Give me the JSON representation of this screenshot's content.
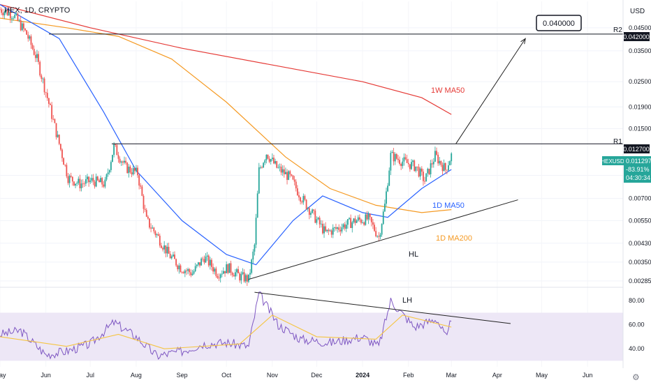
{
  "symbol_title": "HEX, 1D, CRYPTO",
  "currency": "USD",
  "price_badge": {
    "symbol": "HEXUSD",
    "price": "0.011297",
    "change": "-83.91%",
    "timer": "04:30:34",
    "color": "#26a69a"
  },
  "colors": {
    "up_candle": "#26a69a",
    "down_candle": "#ef5350",
    "ma50_1d": "#2962ff",
    "ma200_1d": "#f59a23",
    "ma50_1w": "#e53935",
    "rsi_line": "#7e57c2",
    "rsi_ma": "#f5c542",
    "rsi_band": "#ede7f6",
    "trendline": "#222222"
  },
  "annotations": {
    "target": "0.040000",
    "r2_label": "R2",
    "r2_value": "0.042000",
    "r1_label": "R1",
    "r1_value": "0.012700",
    "ma50_1w_label": "1W MA50",
    "ma50_1d_label": "1D MA50",
    "ma200_1d_label": "1D MA200",
    "hl_label": "HL",
    "lh_label": "LH"
  },
  "price_axis_ticks": [
    "0.045000",
    "0.035000",
    "0.025000",
    "0.019000",
    "0.015000",
    "0.009000",
    "0.007000",
    "0.005500",
    "0.004300",
    "0.003500",
    "0.002850"
  ],
  "rsi_axis_ticks": [
    "80.00",
    "60.00",
    "40.00"
  ],
  "time_axis_labels": [
    "May",
    "Jun",
    "Jul",
    "Aug",
    "Sep",
    "Oct",
    "Nov",
    "Dec",
    "2024",
    "Feb",
    "Mar",
    "Apr",
    "May",
    "Jun"
  ],
  "chart_data": {
    "type": "candlestick",
    "price_scale": "log",
    "y_range": [
      0.0027,
      0.06
    ],
    "rsi_range": [
      25,
      90
    ],
    "rsi_band": [
      30,
      70
    ],
    "x_range": [
      "2023-05-01",
      "2024-06-25"
    ],
    "candles": [
      {
        "date": "2023-05-01",
        "close": 0.055
      },
      {
        "date": "2023-05-10",
        "close": 0.052
      },
      {
        "date": "2023-05-19",
        "close": 0.042
      },
      {
        "date": "2023-05-26",
        "close": 0.032
      },
      {
        "date": "2023-06-02",
        "close": 0.021
      },
      {
        "date": "2023-06-09",
        "close": 0.0135
      },
      {
        "date": "2023-06-16",
        "close": 0.0088
      },
      {
        "date": "2023-06-24",
        "close": 0.0082
      },
      {
        "date": "2023-07-02",
        "close": 0.0085
      },
      {
        "date": "2023-07-11",
        "close": 0.0082
      },
      {
        "date": "2023-07-17",
        "close": 0.0123
      },
      {
        "date": "2023-07-25",
        "close": 0.0098
      },
      {
        "date": "2023-08-02",
        "close": 0.0092
      },
      {
        "date": "2023-08-08",
        "close": 0.0055
      },
      {
        "date": "2023-08-15",
        "close": 0.0047
      },
      {
        "date": "2023-08-23",
        "close": 0.0038
      },
      {
        "date": "2023-08-31",
        "close": 0.0033
      },
      {
        "date": "2023-09-08",
        "close": 0.0031
      },
      {
        "date": "2023-09-16",
        "close": 0.0037
      },
      {
        "date": "2023-09-25",
        "close": 0.0031
      },
      {
        "date": "2023-10-02",
        "close": 0.0033
      },
      {
        "date": "2023-10-10",
        "close": 0.003
      },
      {
        "date": "2023-10-16",
        "close": 0.0029
      },
      {
        "date": "2023-10-20",
        "close": 0.0042
      },
      {
        "date": "2023-10-23",
        "close": 0.0095
      },
      {
        "date": "2023-10-28",
        "close": 0.0115
      },
      {
        "date": "2023-11-04",
        "close": 0.0098
      },
      {
        "date": "2023-11-13",
        "close": 0.0088
      },
      {
        "date": "2023-11-20",
        "close": 0.0072
      },
      {
        "date": "2023-11-29",
        "close": 0.0058
      },
      {
        "date": "2023-12-07",
        "close": 0.0048
      },
      {
        "date": "2023-12-16",
        "close": 0.0051
      },
      {
        "date": "2023-12-27",
        "close": 0.0055
      },
      {
        "date": "2024-01-05",
        "close": 0.0056
      },
      {
        "date": "2024-01-12",
        "close": 0.0046
      },
      {
        "date": "2024-01-16",
        "close": 0.0065
      },
      {
        "date": "2024-01-20",
        "close": 0.0112
      },
      {
        "date": "2024-01-28",
        "close": 0.0105
      },
      {
        "date": "2024-02-06",
        "close": 0.0099
      },
      {
        "date": "2024-02-12",
        "close": 0.0085
      },
      {
        "date": "2024-02-19",
        "close": 0.0112
      },
      {
        "date": "2024-02-26",
        "close": 0.0096
      },
      {
        "date": "2024-03-01",
        "close": 0.0112
      }
    ],
    "series": [
      {
        "name": "1W MA50",
        "values": [
          [
            "2023-05-01",
            0.058
          ],
          [
            "2023-07-01",
            0.045
          ],
          [
            "2023-09-01",
            0.036
          ],
          [
            "2023-11-01",
            0.03
          ],
          [
            "2024-01-01",
            0.025
          ],
          [
            "2024-02-10",
            0.021
          ],
          [
            "2024-03-01",
            0.0175
          ]
        ]
      },
      {
        "name": "1D MA200",
        "values": [
          [
            "2023-05-01",
            0.05
          ],
          [
            "2023-06-15",
            0.045
          ],
          [
            "2023-07-20",
            0.041
          ],
          [
            "2023-08-25",
            0.032
          ],
          [
            "2023-10-01",
            0.02
          ],
          [
            "2023-11-10",
            0.011
          ],
          [
            "2023-12-10",
            0.0078
          ],
          [
            "2024-01-10",
            0.0065
          ],
          [
            "2024-02-10",
            0.006
          ],
          [
            "2024-03-01",
            0.0062
          ]
        ]
      },
      {
        "name": "1D MA50",
        "values": [
          [
            "2023-05-01",
            0.058
          ],
          [
            "2023-06-10",
            0.04
          ],
          [
            "2023-07-10",
            0.018
          ],
          [
            "2023-08-01",
            0.0095
          ],
          [
            "2023-09-01",
            0.0055
          ],
          [
            "2023-10-01",
            0.0038
          ],
          [
            "2023-10-21",
            0.0034
          ],
          [
            "2023-11-15",
            0.0055
          ],
          [
            "2023-12-05",
            0.0072
          ],
          [
            "2024-01-01",
            0.006
          ],
          [
            "2024-01-18",
            0.0057
          ],
          [
            "2024-02-10",
            0.0078
          ],
          [
            "2024-03-01",
            0.0096
          ]
        ]
      }
    ],
    "levels": [
      {
        "name": "R2",
        "value": 0.042
      },
      {
        "name": "R1",
        "value": 0.0127
      }
    ],
    "rsi": [
      {
        "date": "2023-05-01",
        "value": 52
      },
      {
        "date": "2023-05-15",
        "value": 55
      },
      {
        "date": "2023-06-01",
        "value": 35
      },
      {
        "date": "2023-06-15",
        "value": 38
      },
      {
        "date": "2023-07-01",
        "value": 44
      },
      {
        "date": "2023-07-17",
        "value": 62
      },
      {
        "date": "2023-08-01",
        "value": 50
      },
      {
        "date": "2023-08-15",
        "value": 34
      },
      {
        "date": "2023-09-01",
        "value": 38
      },
      {
        "date": "2023-09-15",
        "value": 44
      },
      {
        "date": "2023-10-01",
        "value": 45
      },
      {
        "date": "2023-10-16",
        "value": 42
      },
      {
        "date": "2023-10-23",
        "value": 86
      },
      {
        "date": "2023-11-05",
        "value": 60
      },
      {
        "date": "2023-11-20",
        "value": 48
      },
      {
        "date": "2023-12-10",
        "value": 45
      },
      {
        "date": "2024-01-01",
        "value": 50
      },
      {
        "date": "2024-01-12",
        "value": 42
      },
      {
        "date": "2024-01-20",
        "value": 80
      },
      {
        "date": "2024-02-05",
        "value": 58
      },
      {
        "date": "2024-02-20",
        "value": 65
      },
      {
        "date": "2024-02-27",
        "value": 48
      },
      {
        "date": "2024-03-01",
        "value": 66
      }
    ],
    "rsi_ma": [
      {
        "date": "2023-05-01",
        "value": 50
      },
      {
        "date": "2023-06-15",
        "value": 42
      },
      {
        "date": "2023-07-20",
        "value": 52
      },
      {
        "date": "2023-08-20",
        "value": 40
      },
      {
        "date": "2023-10-10",
        "value": 44
      },
      {
        "date": "2023-11-01",
        "value": 68
      },
      {
        "date": "2023-12-01",
        "value": 50
      },
      {
        "date": "2024-01-10",
        "value": 48
      },
      {
        "date": "2024-01-28",
        "value": 68
      },
      {
        "date": "2024-03-01",
        "value": 58
      }
    ],
    "trendlines": [
      {
        "name": "HL",
        "from": [
          "2023-10-16",
          0.0029
        ],
        "to": [
          "2024-04-15",
          0.0069
        ]
      },
      {
        "name": "R2 target arrow",
        "from": [
          "2024-03-04",
          0.0127
        ],
        "to": [
          "2024-04-20",
          0.04
        ]
      }
    ],
    "rsi_trendline": {
      "name": "LH",
      "from": [
        "2023-10-20",
        87
      ],
      "to": [
        "2024-04-10",
        61
      ]
    }
  }
}
